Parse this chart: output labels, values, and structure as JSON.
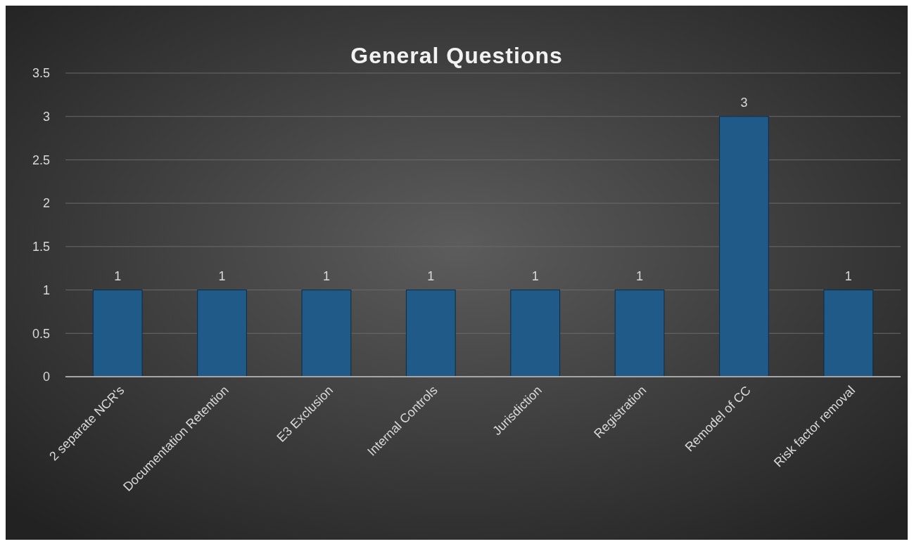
{
  "chart_data": {
    "type": "bar",
    "title": "General Questions",
    "categories": [
      "2 separate NCR's",
      "Documentation Retention",
      "E3 Exclusion",
      "Internal Controls",
      "Jurisdiction",
      "Registration",
      "Remodel of CC",
      "Risk factor removal"
    ],
    "values": [
      1,
      1,
      1,
      1,
      1,
      1,
      3,
      1
    ],
    "color": "#1f5a88",
    "ylim": [
      0,
      3.5
    ],
    "yticks": [
      0,
      0.5,
      1,
      1.5,
      2,
      2.5,
      3,
      3.5
    ],
    "grid": "y",
    "data_labels": true
  }
}
